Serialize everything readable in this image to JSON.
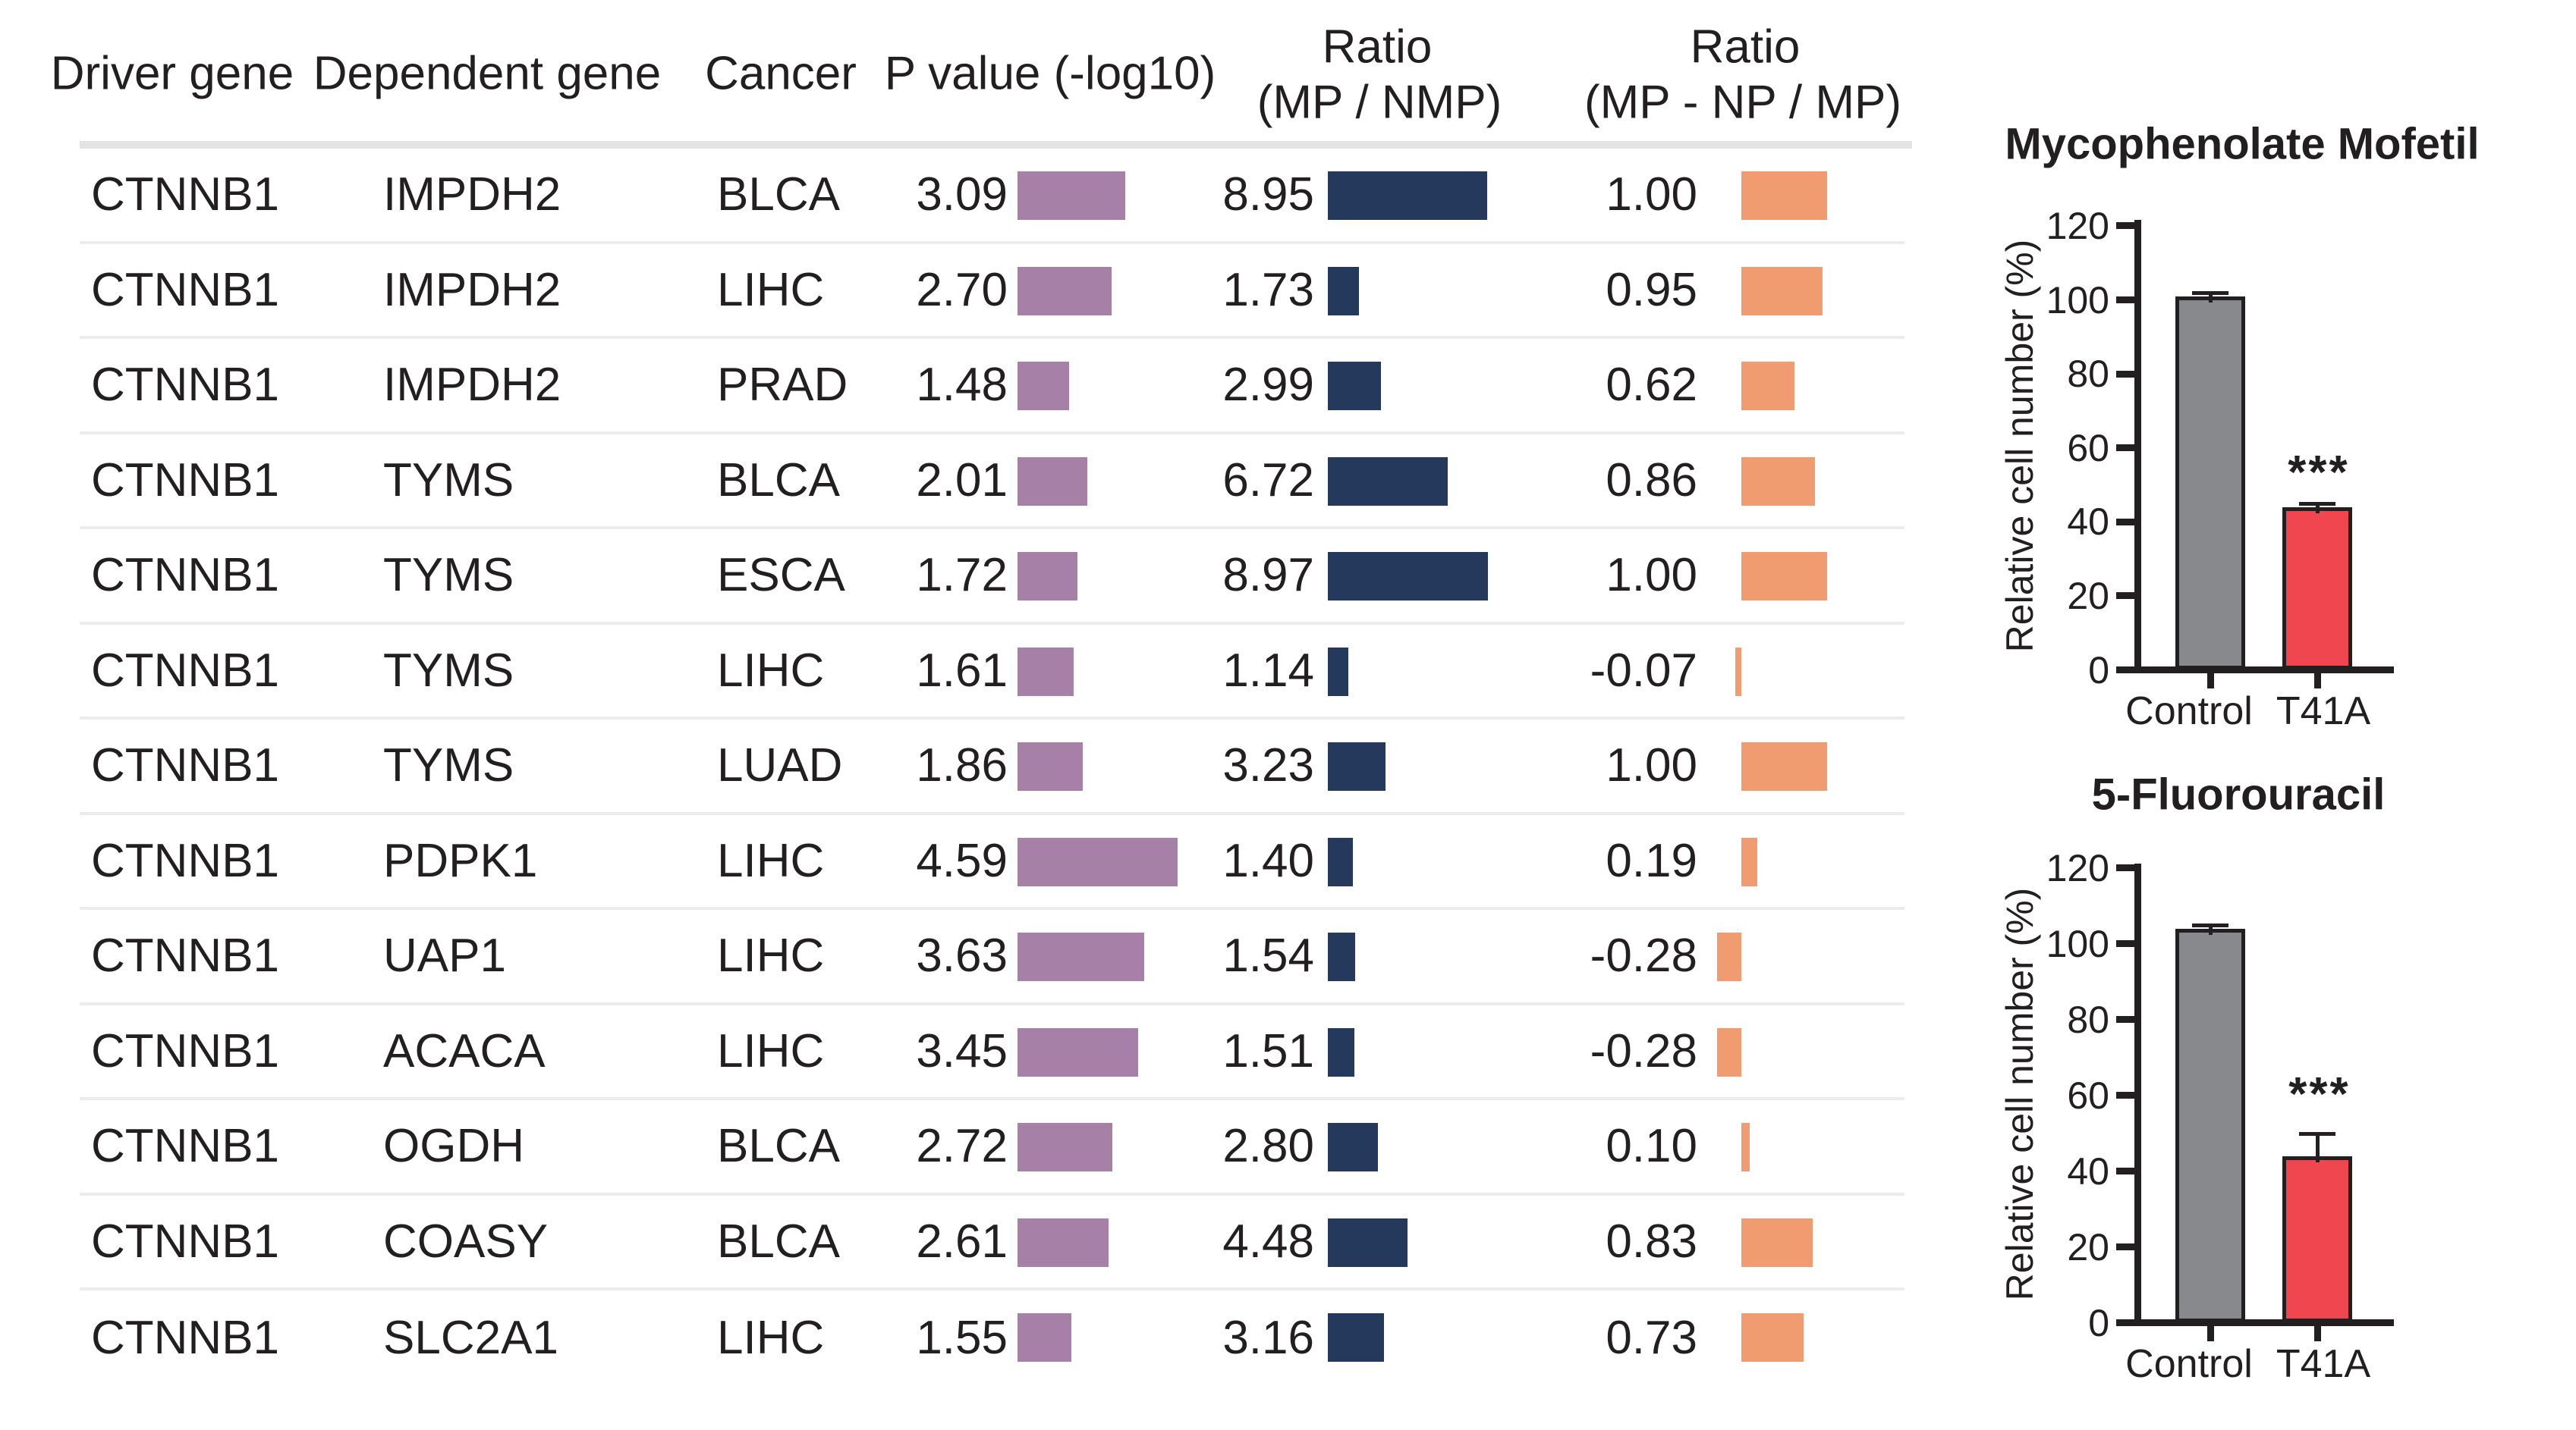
{
  "table": {
    "headers": {
      "driver": "Driver gene",
      "dependent": "Dependent gene",
      "cancer": "Cancer",
      "pvalue": "P value (-log10)",
      "ratio1_line1": "Ratio",
      "ratio1_line2": "(MP / NMP)",
      "ratio2_line1": "Ratio",
      "ratio2_line2": "(MP - NP / MP)"
    },
    "colors": {
      "pvalue_bar": "#a780a8",
      "ratio1_bar": "#25395d",
      "ratio2_bar": "#f09b70",
      "row_separator": "#ececec",
      "header_band": "#e3e3e3",
      "text": "#231f20"
    },
    "rows": [
      {
        "driver": "CTNNB1",
        "dependent": "IMPDH2",
        "cancer": "BLCA",
        "pvalue": "3.09",
        "ratio1": "8.95",
        "ratio2": "1.00"
      },
      {
        "driver": "CTNNB1",
        "dependent": "IMPDH2",
        "cancer": "LIHC",
        "pvalue": "2.70",
        "ratio1": "1.73",
        "ratio2": "0.95"
      },
      {
        "driver": "CTNNB1",
        "dependent": "IMPDH2",
        "cancer": "PRAD",
        "pvalue": "1.48",
        "ratio1": "2.99",
        "ratio2": "0.62"
      },
      {
        "driver": "CTNNB1",
        "dependent": "TYMS",
        "cancer": "BLCA",
        "pvalue": "2.01",
        "ratio1": "6.72",
        "ratio2": "0.86"
      },
      {
        "driver": "CTNNB1",
        "dependent": "TYMS",
        "cancer": "ESCA",
        "pvalue": "1.72",
        "ratio1": "8.97",
        "ratio2": "1.00"
      },
      {
        "driver": "CTNNB1",
        "dependent": "TYMS",
        "cancer": "LIHC",
        "pvalue": "1.61",
        "ratio1": "1.14",
        "ratio2": "-0.07"
      },
      {
        "driver": "CTNNB1",
        "dependent": "TYMS",
        "cancer": "LUAD",
        "pvalue": "1.86",
        "ratio1": "3.23",
        "ratio2": "1.00"
      },
      {
        "driver": "CTNNB1",
        "dependent": "PDPK1",
        "cancer": "LIHC",
        "pvalue": "4.59",
        "ratio1": "1.40",
        "ratio2": "0.19"
      },
      {
        "driver": "CTNNB1",
        "dependent": "UAP1",
        "cancer": "LIHC",
        "pvalue": "3.63",
        "ratio1": "1.54",
        "ratio2": "-0.28"
      },
      {
        "driver": "CTNNB1",
        "dependent": "ACACA",
        "cancer": "LIHC",
        "pvalue": "3.45",
        "ratio1": "1.51",
        "ratio2": "-0.28"
      },
      {
        "driver": "CTNNB1",
        "dependent": "OGDH",
        "cancer": "BLCA",
        "pvalue": "2.72",
        "ratio1": "2.80",
        "ratio2": "0.10"
      },
      {
        "driver": "CTNNB1",
        "dependent": "COASY",
        "cancer": "BLCA",
        "pvalue": "2.61",
        "ratio1": "4.48",
        "ratio2": "0.83"
      },
      {
        "driver": "CTNNB1",
        "dependent": "SLC2A1",
        "cancer": "LIHC",
        "pvalue": "1.55",
        "ratio1": "3.16",
        "ratio2": "0.73"
      }
    ]
  },
  "chart_data": [
    {
      "type": "bar",
      "title": "Mycophenolate Mofetil",
      "ylabel": "Relative cell number (%)",
      "xlabel": "",
      "ylim": [
        0,
        120
      ],
      "yticks": [
        0,
        20,
        40,
        60,
        80,
        100,
        120
      ],
      "categories": [
        "Control",
        "T41A"
      ],
      "values": [
        100,
        43
      ],
      "errors": [
        2,
        2
      ],
      "bar_colors": [
        "#87898c",
        "#ef4650"
      ],
      "significance": {
        "label": "***",
        "category": "T41A"
      },
      "grid": false,
      "legend": null
    },
    {
      "type": "bar",
      "title": "5-Fluorouracil",
      "ylabel": "Relative cell number (%)",
      "xlabel": "",
      "ylim": [
        0,
        120
      ],
      "yticks": [
        0,
        20,
        40,
        60,
        80,
        100,
        120
      ],
      "categories": [
        "Control",
        "T41A"
      ],
      "values": [
        103,
        43
      ],
      "errors": [
        2,
        7
      ],
      "bar_colors": [
        "#87898c",
        "#ef4650"
      ],
      "significance": {
        "label": "***",
        "category": "T41A"
      },
      "grid": false,
      "legend": null
    },
    {
      "type": "table",
      "title": "Driver gene dependency table with inline bars",
      "columns": [
        "Driver gene",
        "Dependent gene",
        "Cancer",
        "P value (-log10)",
        "Ratio (MP / NMP)",
        "Ratio (MP - NP / MP)"
      ],
      "bar_columns": {
        "pvalue_max": 4.59,
        "ratio1_max": 8.97,
        "ratio2_range": [
          -0.28,
          1.0
        ]
      },
      "rows": [
        [
          "CTNNB1",
          "IMPDH2",
          "BLCA",
          3.09,
          8.95,
          1.0
        ],
        [
          "CTNNB1",
          "IMPDH2",
          "LIHC",
          2.7,
          1.73,
          0.95
        ],
        [
          "CTNNB1",
          "IMPDH2",
          "PRAD",
          1.48,
          2.99,
          0.62
        ],
        [
          "CTNNB1",
          "TYMS",
          "BLCA",
          2.01,
          6.72,
          0.86
        ],
        [
          "CTNNB1",
          "TYMS",
          "ESCA",
          1.72,
          8.97,
          1.0
        ],
        [
          "CTNNB1",
          "TYMS",
          "LIHC",
          1.61,
          1.14,
          -0.07
        ],
        [
          "CTNNB1",
          "TYMS",
          "LUAD",
          1.86,
          3.23,
          1.0
        ],
        [
          "CTNNB1",
          "PDPK1",
          "LIHC",
          4.59,
          1.4,
          0.19
        ],
        [
          "CTNNB1",
          "UAP1",
          "LIHC",
          3.63,
          1.54,
          -0.28
        ],
        [
          "CTNNB1",
          "ACACA",
          "LIHC",
          3.45,
          1.51,
          -0.28
        ],
        [
          "CTNNB1",
          "OGDH",
          "BLCA",
          2.72,
          2.8,
          0.1
        ],
        [
          "CTNNB1",
          "COASY",
          "BLCA",
          2.61,
          4.48,
          0.83
        ],
        [
          "CTNNB1",
          "SLC2A1",
          "LIHC",
          1.55,
          3.16,
          0.73
        ]
      ]
    }
  ]
}
